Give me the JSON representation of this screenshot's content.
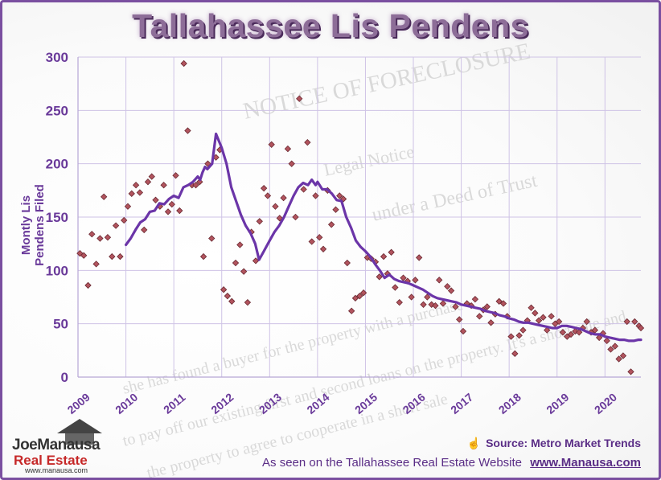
{
  "title": "Tallahassee Lis Pendens",
  "watermark": {
    "notice": "NOTICE OF FORECLOSURE",
    "legal": "Legal Notice",
    "deed": "under a Deed of Trust",
    "lines": [
      "she has found a buyer for the property with a purchase",
      "to pay off our existing first and second loans on the property. It's a short sale and",
      "the property to agree to cooperate in a short sale"
    ]
  },
  "footer": {
    "source": "Source: Metro Market Trends",
    "seen_prefix": "As seen on the Tallahassee Real Estate Website",
    "website": "www.Manausa.com"
  },
  "logo": {
    "line1": "JoeManausa",
    "line2": "Real Estate",
    "line3": "www.manausa.com"
  },
  "colors": {
    "line": "#6b35a8",
    "dot": "#b2545e",
    "dot_border": "#6a2a32",
    "axis_text": "#6a3a9a",
    "grid": "#cfc3e6"
  },
  "chart_data": {
    "type": "scatter",
    "ylabel": "Montly Lis Pendens Filed",
    "xlabel": "",
    "ylim": [
      0,
      300
    ],
    "yticks": [
      0,
      50,
      100,
      150,
      200,
      250,
      300
    ],
    "xlim": [
      2009,
      2020.75
    ],
    "xticks": [
      "2009",
      "2010",
      "2011",
      "2012",
      "2013",
      "2014",
      "2015",
      "2016",
      "2017",
      "2018",
      "2019",
      "2020"
    ],
    "grid": true,
    "series": [
      {
        "kind": "scatter",
        "points": [
          [
            2009.04,
            116
          ],
          [
            2009.12,
            114
          ],
          [
            2009.21,
            86
          ],
          [
            2009.29,
            134
          ],
          [
            2009.38,
            106
          ],
          [
            2009.46,
            130
          ],
          [
            2009.54,
            169
          ],
          [
            2009.62,
            131
          ],
          [
            2009.71,
            113
          ],
          [
            2009.79,
            142
          ],
          [
            2009.88,
            113
          ],
          [
            2009.96,
            147
          ],
          [
            2010.04,
            160
          ],
          [
            2010.12,
            172
          ],
          [
            2010.21,
            180
          ],
          [
            2010.29,
            173
          ],
          [
            2010.38,
            138
          ],
          [
            2010.46,
            183
          ],
          [
            2010.54,
            188
          ],
          [
            2010.62,
            166
          ],
          [
            2010.71,
            160
          ],
          [
            2010.79,
            180
          ],
          [
            2010.88,
            155
          ],
          [
            2010.96,
            162
          ],
          [
            2011.04,
            189
          ],
          [
            2011.12,
            156
          ],
          [
            2011.21,
            294
          ],
          [
            2011.29,
            231
          ],
          [
            2011.38,
            180
          ],
          [
            2011.46,
            180
          ],
          [
            2011.54,
            183
          ],
          [
            2011.62,
            113
          ],
          [
            2011.71,
            200
          ],
          [
            2011.79,
            130
          ],
          [
            2011.88,
            206
          ],
          [
            2011.96,
            213
          ],
          [
            2012.04,
            82
          ],
          [
            2012.12,
            76
          ],
          [
            2012.21,
            71
          ],
          [
            2012.29,
            107
          ],
          [
            2012.38,
            124
          ],
          [
            2012.46,
            99
          ],
          [
            2012.54,
            70
          ],
          [
            2012.62,
            136
          ],
          [
            2012.71,
            109
          ],
          [
            2012.79,
            146
          ],
          [
            2012.88,
            177
          ],
          [
            2012.96,
            170
          ],
          [
            2013.04,
            218
          ],
          [
            2013.12,
            160
          ],
          [
            2013.21,
            149
          ],
          [
            2013.29,
            168
          ],
          [
            2013.38,
            214
          ],
          [
            2013.46,
            200
          ],
          [
            2013.54,
            150
          ],
          [
            2013.62,
            261
          ],
          [
            2013.71,
            176
          ],
          [
            2013.79,
            220
          ],
          [
            2013.88,
            127
          ],
          [
            2013.96,
            170
          ],
          [
            2014.04,
            131
          ],
          [
            2014.12,
            120
          ],
          [
            2014.21,
            175
          ],
          [
            2014.29,
            143
          ],
          [
            2014.38,
            157
          ],
          [
            2014.46,
            170
          ],
          [
            2014.54,
            167
          ],
          [
            2014.62,
            107
          ],
          [
            2014.71,
            62
          ],
          [
            2014.79,
            74
          ],
          [
            2014.88,
            76
          ],
          [
            2014.96,
            79
          ],
          [
            2015.04,
            112
          ],
          [
            2015.12,
            111
          ],
          [
            2015.21,
            108
          ],
          [
            2015.29,
            94
          ],
          [
            2015.38,
            113
          ],
          [
            2015.46,
            97
          ],
          [
            2015.54,
            117
          ],
          [
            2015.62,
            84
          ],
          [
            2015.71,
            70
          ],
          [
            2015.79,
            93
          ],
          [
            2015.88,
            90
          ],
          [
            2015.96,
            75
          ],
          [
            2016.04,
            91
          ],
          [
            2016.12,
            112
          ],
          [
            2016.21,
            68
          ],
          [
            2016.29,
            75
          ],
          [
            2016.38,
            68
          ],
          [
            2016.46,
            67
          ],
          [
            2016.54,
            91
          ],
          [
            2016.62,
            69
          ],
          [
            2016.71,
            85
          ],
          [
            2016.79,
            81
          ],
          [
            2016.88,
            66
          ],
          [
            2016.96,
            54
          ],
          [
            2017.04,
            43
          ],
          [
            2017.12,
            69
          ],
          [
            2017.21,
            67
          ],
          [
            2017.29,
            73
          ],
          [
            2017.38,
            57
          ],
          [
            2017.46,
            63
          ],
          [
            2017.54,
            66
          ],
          [
            2017.62,
            51
          ],
          [
            2017.71,
            59
          ],
          [
            2017.79,
            71
          ],
          [
            2017.88,
            69
          ],
          [
            2017.96,
            57
          ],
          [
            2018.04,
            38
          ],
          [
            2018.12,
            22
          ],
          [
            2018.21,
            39
          ],
          [
            2018.29,
            44
          ],
          [
            2018.38,
            53
          ],
          [
            2018.46,
            65
          ],
          [
            2018.54,
            60
          ],
          [
            2018.62,
            53
          ],
          [
            2018.71,
            56
          ],
          [
            2018.79,
            44
          ],
          [
            2018.88,
            57
          ],
          [
            2018.96,
            50
          ],
          [
            2019.04,
            52
          ],
          [
            2019.12,
            42
          ],
          [
            2019.21,
            38
          ],
          [
            2019.29,
            40
          ],
          [
            2019.38,
            43
          ],
          [
            2019.46,
            42
          ],
          [
            2019.54,
            46
          ],
          [
            2019.62,
            52
          ],
          [
            2019.71,
            42
          ],
          [
            2019.79,
            44
          ],
          [
            2019.88,
            37
          ],
          [
            2019.96,
            41
          ],
          [
            2020.04,
            34
          ],
          [
            2020.12,
            26
          ],
          [
            2020.21,
            29
          ],
          [
            2020.29,
            17
          ],
          [
            2020.38,
            20
          ],
          [
            2020.46,
            52
          ],
          [
            2020.54,
            5
          ],
          [
            2020.62,
            52
          ],
          [
            2020.71,
            48
          ],
          [
            2020.75,
            46
          ]
        ]
      },
      {
        "kind": "line",
        "name": "",
        "points": [
          [
            2010.0,
            124
          ],
          [
            2010.1,
            130
          ],
          [
            2010.2,
            138
          ],
          [
            2010.3,
            145
          ],
          [
            2010.4,
            148
          ],
          [
            2010.5,
            155
          ],
          [
            2010.6,
            156
          ],
          [
            2010.7,
            163
          ],
          [
            2010.8,
            162
          ],
          [
            2010.9,
            167
          ],
          [
            2011.0,
            170
          ],
          [
            2011.1,
            168
          ],
          [
            2011.2,
            178
          ],
          [
            2011.3,
            180
          ],
          [
            2011.4,
            183
          ],
          [
            2011.5,
            188
          ],
          [
            2011.55,
            185
          ],
          [
            2011.6,
            192
          ],
          [
            2011.65,
            197
          ],
          [
            2011.7,
            195
          ],
          [
            2011.8,
            200
          ],
          [
            2011.88,
            228
          ],
          [
            2012.0,
            215
          ],
          [
            2012.1,
            200
          ],
          [
            2012.2,
            178
          ],
          [
            2012.3,
            165
          ],
          [
            2012.4,
            152
          ],
          [
            2012.5,
            142
          ],
          [
            2012.6,
            135
          ],
          [
            2012.7,
            125
          ],
          [
            2012.78,
            110
          ],
          [
            2012.88,
            118
          ],
          [
            2013.0,
            128
          ],
          [
            2013.1,
            136
          ],
          [
            2013.2,
            142
          ],
          [
            2013.3,
            150
          ],
          [
            2013.4,
            160
          ],
          [
            2013.5,
            170
          ],
          [
            2013.6,
            178
          ],
          [
            2013.7,
            182
          ],
          [
            2013.8,
            180
          ],
          [
            2013.88,
            185
          ],
          [
            2013.96,
            180
          ],
          [
            2014.0,
            183
          ],
          [
            2014.1,
            176
          ],
          [
            2014.2,
            176
          ],
          [
            2014.3,
            172
          ],
          [
            2014.4,
            166
          ],
          [
            2014.5,
            165
          ],
          [
            2014.6,
            150
          ],
          [
            2014.7,
            140
          ],
          [
            2014.8,
            128
          ],
          [
            2014.9,
            122
          ],
          [
            2015.0,
            118
          ],
          [
            2015.1,
            113
          ],
          [
            2015.2,
            106
          ],
          [
            2015.3,
            100
          ],
          [
            2015.4,
            93
          ],
          [
            2015.5,
            96
          ],
          [
            2015.6,
            92
          ],
          [
            2015.7,
            90
          ],
          [
            2015.8,
            89
          ],
          [
            2015.9,
            88
          ],
          [
            2016.0,
            86
          ],
          [
            2016.1,
            84
          ],
          [
            2016.2,
            82
          ],
          [
            2016.3,
            79
          ],
          [
            2016.4,
            76
          ],
          [
            2016.5,
            74
          ],
          [
            2016.6,
            73
          ],
          [
            2016.7,
            72
          ],
          [
            2016.8,
            71
          ],
          [
            2016.9,
            70
          ],
          [
            2017.0,
            68
          ],
          [
            2017.1,
            67
          ],
          [
            2017.2,
            66
          ],
          [
            2017.3,
            65
          ],
          [
            2017.4,
            64
          ],
          [
            2017.5,
            62
          ],
          [
            2017.6,
            61
          ],
          [
            2017.7,
            60
          ],
          [
            2017.8,
            58
          ],
          [
            2017.9,
            57
          ],
          [
            2018.0,
            55
          ],
          [
            2018.1,
            54
          ],
          [
            2018.2,
            52
          ],
          [
            2018.3,
            51
          ],
          [
            2018.4,
            51
          ],
          [
            2018.5,
            50
          ],
          [
            2018.6,
            49
          ],
          [
            2018.7,
            48
          ],
          [
            2018.8,
            47
          ],
          [
            2018.9,
            46
          ],
          [
            2019.0,
            46
          ],
          [
            2019.1,
            48
          ],
          [
            2019.2,
            48
          ],
          [
            2019.3,
            47
          ],
          [
            2019.4,
            46
          ],
          [
            2019.5,
            45
          ],
          [
            2019.6,
            43
          ],
          [
            2019.7,
            41
          ],
          [
            2019.8,
            40
          ],
          [
            2019.9,
            40
          ],
          [
            2020.0,
            38
          ],
          [
            2020.1,
            37
          ],
          [
            2020.2,
            36
          ],
          [
            2020.3,
            35
          ],
          [
            2020.4,
            35
          ],
          [
            2020.5,
            34
          ],
          [
            2020.6,
            34
          ],
          [
            2020.7,
            35
          ],
          [
            2020.75,
            35
          ]
        ]
      }
    ]
  }
}
